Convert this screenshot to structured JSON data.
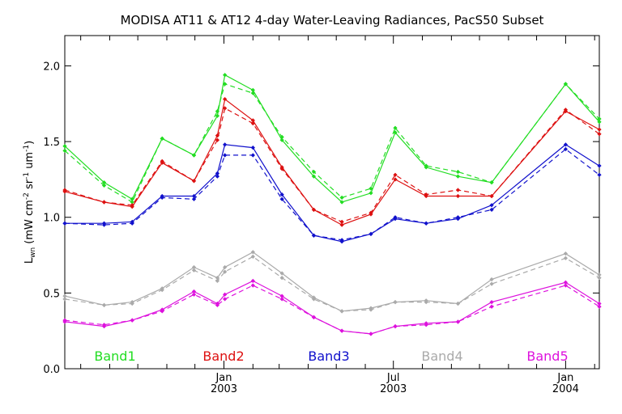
{
  "chart_data": {
    "type": "line",
    "title": "MODISA AT11 & AT12 4-day Water-Leaving Radiances, PacS50 Subset",
    "ylabel_main": "L",
    "ylabel_sub": "wn",
    "ylabel_units": "(mW cm",
    "ylabel_exp1": "-2",
    "ylabel_mid": " sr",
    "ylabel_exp2": "-1",
    "ylabel_end": " um",
    "ylabel_exp3": "-1",
    "ylabel_close": ")",
    "ylim": [
      0.0,
      2.2
    ],
    "yticks": [
      "0.0",
      "0.5",
      "1.0",
      "1.5",
      "2.0"
    ],
    "ytick_values": [
      0.0,
      0.5,
      1.0,
      1.5,
      2.0
    ],
    "xlim": [
      "2002-07-15",
      "2004-02-06"
    ],
    "xtick_labels": [
      {
        "date": "2003-01-01",
        "line1": "Jan",
        "line2": "2003"
      },
      {
        "date": "2003-07-01",
        "line1": "Jul",
        "line2": "2003"
      },
      {
        "date": "2004-01-01",
        "line1": "Jan",
        "line2": "2004"
      }
    ],
    "legend_placement": "bottom",
    "grid": false,
    "x": [
      "2002-07-15",
      "2002-08-26",
      "2002-09-25",
      "2002-10-27",
      "2002-11-30",
      "2002-12-25",
      "2003-01-02",
      "2003-02-01",
      "2003-03-04",
      "2003-04-07",
      "2003-05-07",
      "2003-06-07",
      "2003-07-03",
      "2003-08-05",
      "2003-09-08",
      "2003-10-14",
      "2004-01-01",
      "2004-02-06"
    ],
    "series": [
      {
        "name": "Band1",
        "color": "#22dd22",
        "solid": [
          1.47,
          1.23,
          1.12,
          1.52,
          1.41,
          1.67,
          1.94,
          1.84,
          1.51,
          1.27,
          1.1,
          1.16,
          1.56,
          1.33,
          1.27,
          1.23,
          1.88,
          1.63
        ],
        "dashed": [
          1.44,
          1.21,
          1.1,
          1.52,
          1.41,
          1.7,
          1.88,
          1.82,
          1.53,
          1.3,
          1.13,
          1.19,
          1.59,
          1.34,
          1.3,
          1.23,
          1.88,
          1.65
        ]
      },
      {
        "name": "Band2",
        "color": "#dd1111",
        "solid": [
          1.17,
          1.1,
          1.07,
          1.36,
          1.24,
          1.54,
          1.78,
          1.64,
          1.33,
          1.05,
          0.95,
          1.02,
          1.25,
          1.14,
          1.14,
          1.14,
          1.7,
          1.58
        ],
        "dashed": [
          1.18,
          1.1,
          1.08,
          1.37,
          1.24,
          1.51,
          1.72,
          1.62,
          1.32,
          1.05,
          0.97,
          1.03,
          1.28,
          1.15,
          1.18,
          1.14,
          1.71,
          1.55
        ]
      },
      {
        "name": "Band3",
        "color": "#1111cc",
        "solid": [
          0.96,
          0.96,
          0.97,
          1.14,
          1.14,
          1.29,
          1.48,
          1.46,
          1.15,
          0.88,
          0.84,
          0.89,
          0.99,
          0.96,
          0.99,
          1.08,
          1.48,
          1.34
        ],
        "dashed": [
          0.96,
          0.95,
          0.96,
          1.13,
          1.12,
          1.27,
          1.41,
          1.41,
          1.12,
          0.88,
          0.85,
          0.89,
          1.0,
          0.96,
          1.0,
          1.05,
          1.45,
          1.28
        ]
      },
      {
        "name": "Band4",
        "color": "#aaaaaa",
        "solid": [
          0.48,
          0.42,
          0.44,
          0.53,
          0.67,
          0.6,
          0.67,
          0.77,
          0.63,
          0.47,
          0.38,
          0.4,
          0.44,
          0.45,
          0.43,
          0.59,
          0.76,
          0.62
        ],
        "dashed": [
          0.46,
          0.42,
          0.43,
          0.52,
          0.65,
          0.58,
          0.64,
          0.74,
          0.6,
          0.46,
          0.38,
          0.39,
          0.44,
          0.44,
          0.43,
          0.56,
          0.73,
          0.6
        ]
      },
      {
        "name": "Band5",
        "color": "#dd11dd",
        "solid": [
          0.31,
          0.28,
          0.32,
          0.39,
          0.51,
          0.43,
          0.49,
          0.58,
          0.48,
          0.34,
          0.25,
          0.23,
          0.28,
          0.3,
          0.31,
          0.44,
          0.57,
          0.43
        ],
        "dashed": [
          0.32,
          0.29,
          0.32,
          0.38,
          0.49,
          0.42,
          0.46,
          0.55,
          0.46,
          0.34,
          0.25,
          0.23,
          0.28,
          0.29,
          0.31,
          0.41,
          0.55,
          0.41
        ]
      }
    ]
  }
}
